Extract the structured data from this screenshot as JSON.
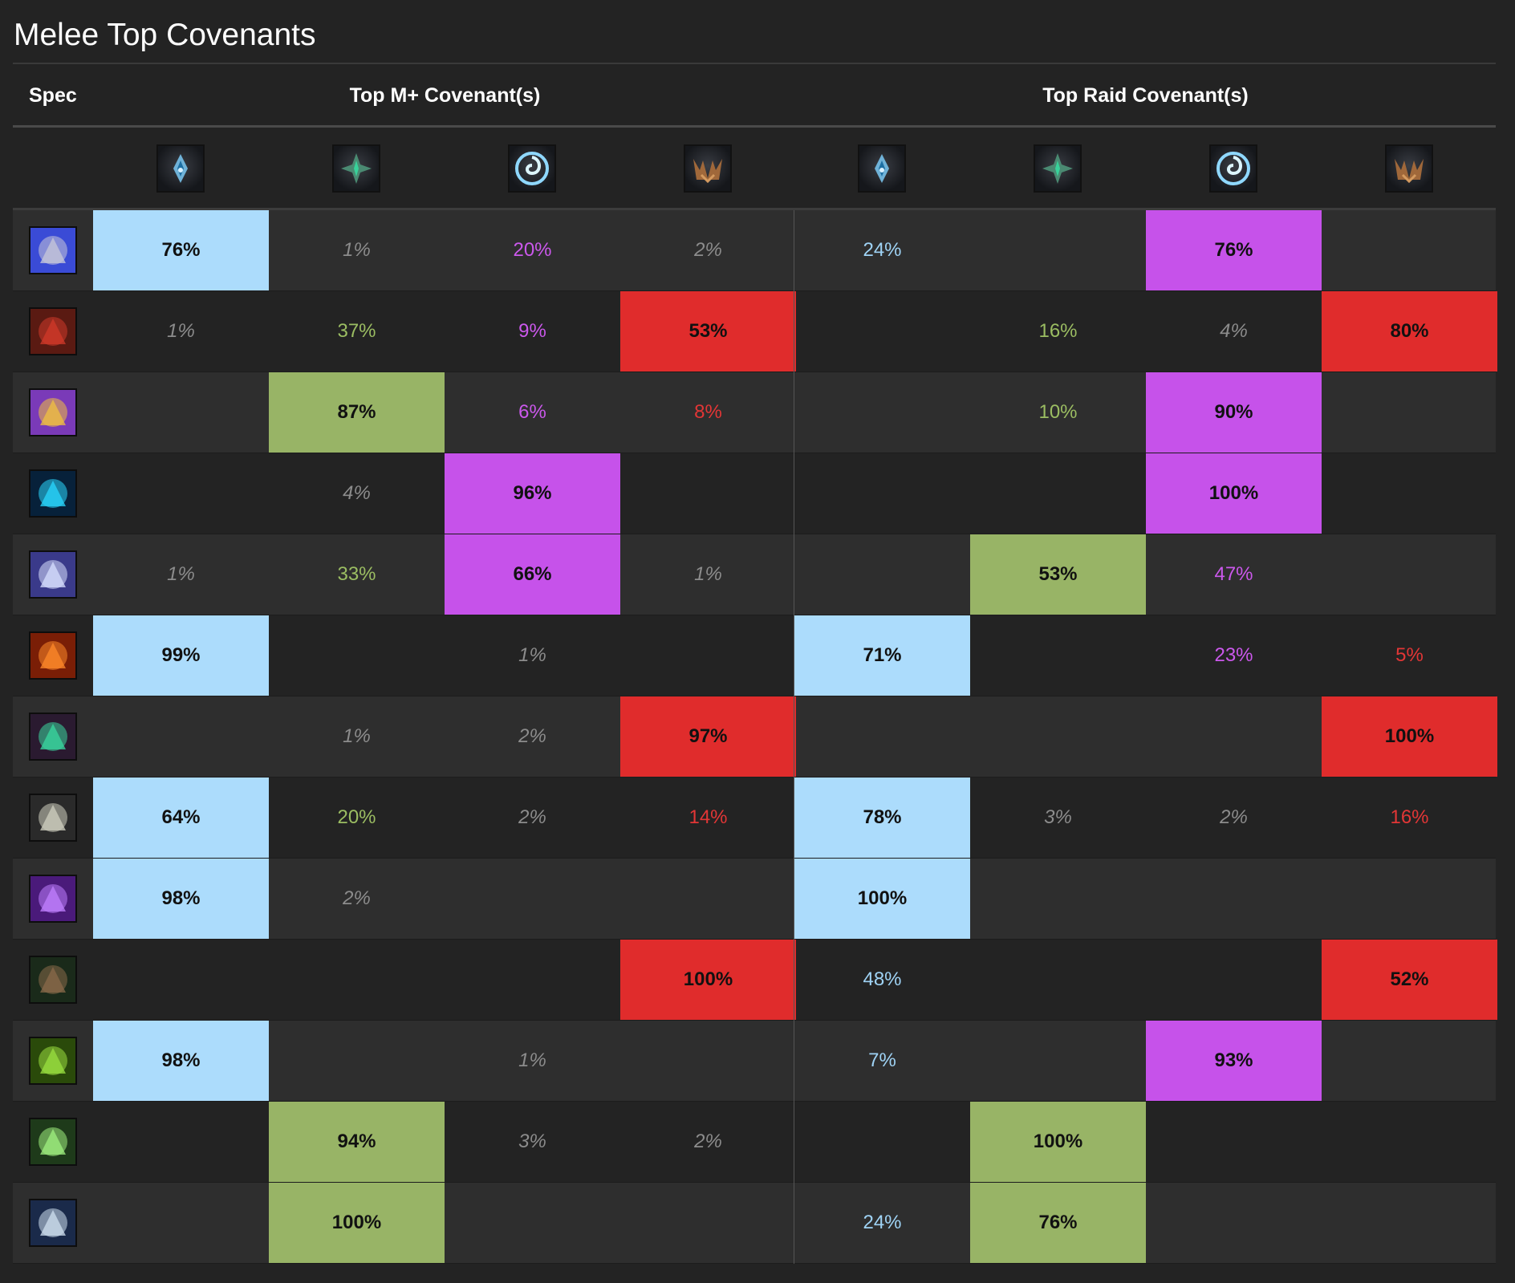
{
  "title": "Melee Top Covenants",
  "header": {
    "spec": "Spec",
    "mplus": "Top M+ Covenant(s)",
    "raid": "Top Raid Covenant(s)"
  },
  "colors": {
    "kyrian": "#acdcfc",
    "necrolord": "#98b466",
    "night_fae": "#c652ea",
    "venthyr": "#e02c2c"
  },
  "covenant_icons": [
    "kyrian-icon",
    "necrolord-icon",
    "night-fae-icon",
    "venthyr-icon"
  ],
  "rows": [
    {
      "spec_icon": "arms-warrior-icon",
      "mplus": [
        "76%",
        "1%",
        "20%",
        "2%"
      ],
      "raid": [
        "24%",
        "",
        "76%",
        ""
      ]
    },
    {
      "spec_icon": "fury-warrior-icon",
      "mplus": [
        "1%",
        "37%",
        "9%",
        "53%"
      ],
      "raid": [
        "",
        "16%",
        "4%",
        "80%"
      ]
    },
    {
      "spec_icon": "retribution-paladin-icon",
      "mplus": [
        "",
        "87%",
        "6%",
        "8%"
      ],
      "raid": [
        "",
        "10%",
        "90%",
        ""
      ]
    },
    {
      "spec_icon": "enhancement-shaman-icon",
      "mplus": [
        "",
        "4%",
        "96%",
        ""
      ],
      "raid": [
        "",
        "",
        "100%",
        ""
      ]
    },
    {
      "spec_icon": "frost-death-knight-icon",
      "mplus": [
        "1%",
        "33%",
        "66%",
        "1%"
      ],
      "raid": [
        "",
        "53%",
        "47%",
        ""
      ]
    },
    {
      "spec_icon": "unholy-death-knight-icon",
      "mplus": [
        "99%",
        "",
        "1%",
        ""
      ],
      "raid": [
        "71%",
        "",
        "23%",
        "5%"
      ]
    },
    {
      "spec_icon": "havoc-demon-hunter-icon",
      "mplus": [
        "",
        "1%",
        "2%",
        "97%"
      ],
      "raid": [
        "",
        "",
        "",
        "100%"
      ]
    },
    {
      "spec_icon": "survival-hunter-icon",
      "mplus": [
        "64%",
        "20%",
        "2%",
        "14%"
      ],
      "raid": [
        "78%",
        "3%",
        "2%",
        "16%"
      ]
    },
    {
      "spec_icon": "windwalker-monk-icon",
      "mplus": [
        "98%",
        "2%",
        "",
        ""
      ],
      "raid": [
        "100%",
        "",
        "",
        ""
      ]
    },
    {
      "spec_icon": "outlaw-rogue-icon",
      "mplus": [
        "",
        "",
        "",
        "100%"
      ],
      "raid": [
        "48%",
        "",
        "",
        "52%"
      ]
    },
    {
      "spec_icon": "assassination-rogue-icon",
      "mplus": [
        "98%",
        "",
        "1%",
        ""
      ],
      "raid": [
        "7%",
        "",
        "93%",
        ""
      ]
    },
    {
      "spec_icon": "subtlety-rogue-icon",
      "mplus": [
        "",
        "94%",
        "3%",
        "2%"
      ],
      "raid": [
        "",
        "100%",
        "",
        ""
      ]
    },
    {
      "spec_icon": "feral-druid-icon",
      "mplus": [
        "",
        "100%",
        "",
        ""
      ],
      "raid": [
        "24%",
        "76%",
        "",
        ""
      ]
    }
  ]
}
